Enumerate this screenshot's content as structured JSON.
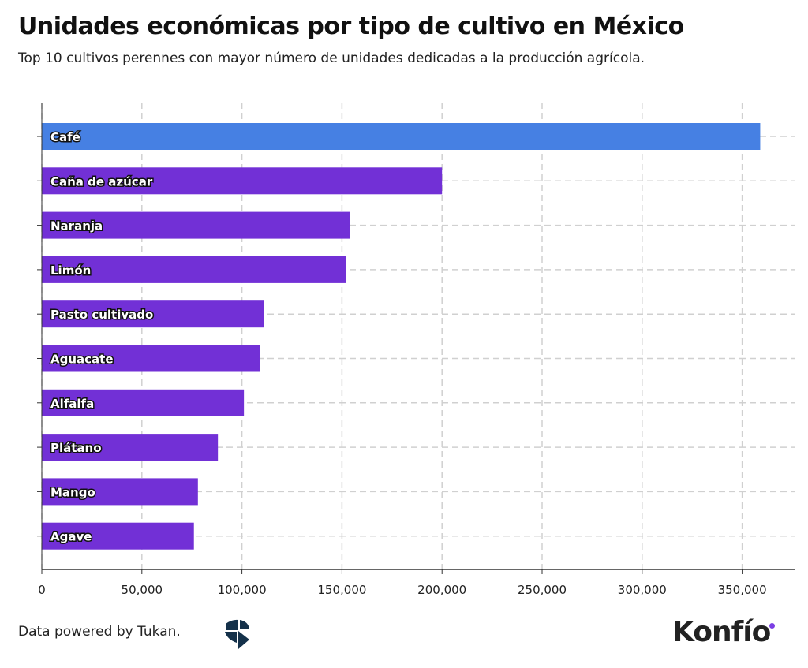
{
  "chart_data": {
    "type": "bar",
    "orientation": "horizontal",
    "title": "Unidades económicas por tipo de cultivo en México",
    "subtitle": "Top 10 cultivos perennes con mayor número de unidades dedicadas a la producción agrícola.",
    "categories": [
      "Café",
      "Caña de azúcar",
      "Naranja",
      "Limón",
      "Pasto cultivado",
      "Aguacate",
      "Alfalfa",
      "Plátano",
      "Mango",
      "Agave"
    ],
    "values": [
      359000,
      200000,
      154000,
      152000,
      111000,
      109000,
      101000,
      88000,
      78000,
      76000
    ],
    "colors": [
      "#4680e3",
      "#7230d6",
      "#7230d6",
      "#7230d6",
      "#7230d6",
      "#7230d6",
      "#7230d6",
      "#7230d6",
      "#7230d6",
      "#7230d6"
    ],
    "xlim": [
      0,
      376000
    ],
    "xticks": [
      0,
      50000,
      100000,
      150000,
      200000,
      250000,
      300000,
      350000
    ],
    "xtick_labels": [
      "0",
      "50,000",
      "100,000",
      "150,000",
      "200,000",
      "250,000",
      "300,000",
      "350,000"
    ],
    "grid": true,
    "xlabel": "",
    "ylabel": ""
  },
  "footer": {
    "source": "Data powered by Tukan.",
    "brand": "Konfío"
  }
}
